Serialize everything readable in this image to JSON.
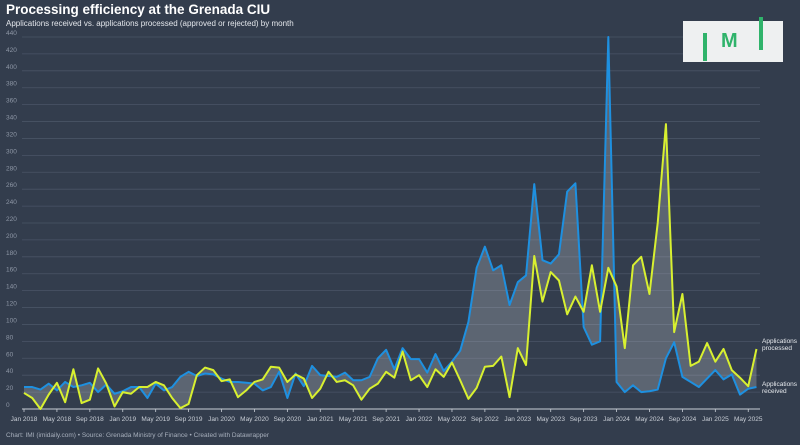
{
  "title": "Processing efficiency at the Grenada CIU",
  "subtitle": "Applications received vs. applications processed (approved or rejected) by month",
  "footer": "Chart: IMI (imidaily.com) • Source: Grenada Ministry of Finance • Created with Datawrapper",
  "logo_text": "IMI",
  "colors": {
    "background": "#333d4d",
    "received": "#1e90e0",
    "processed": "#d8f030",
    "fill": "#c8ccd4"
  },
  "chart_data": {
    "type": "line",
    "title": "Processing efficiency at the Grenada CIU",
    "xlabel": "",
    "ylabel": "",
    "ylim": [
      0,
      440
    ],
    "yticks": [
      0,
      20,
      40,
      60,
      80,
      100,
      120,
      140,
      160,
      180,
      200,
      220,
      240,
      260,
      280,
      300,
      320,
      340,
      360,
      380,
      400,
      420,
      440
    ],
    "grid": true,
    "x_start": "Jan 2018",
    "x_end": "Jun 2025",
    "xtick_labels": [
      "Jan 2018",
      "May 2018",
      "Sep 2018",
      "Jan 2019",
      "May 2019",
      "Sep 2019",
      "Jan 2020",
      "May 2020",
      "Sep 2020",
      "Jan 2021",
      "May 2021",
      "Sep 2021",
      "Jan 2022",
      "May 2022",
      "Sep 2022",
      "Jan 2023",
      "May 2023",
      "Sep 2023",
      "Jan 2024",
      "May 2024",
      "Sep 2024",
      "Jan 2025",
      "May 2025"
    ],
    "series": [
      {
        "name": "Applications received",
        "label_lines": [
          "Applications",
          "received"
        ],
        "values": [
          26,
          26,
          23,
          30,
          22,
          32,
          26,
          28,
          31,
          20,
          29,
          18,
          21,
          26,
          26,
          13,
          30,
          22,
          26,
          38,
          44,
          39,
          42,
          41,
          36,
          32,
          32,
          31,
          30,
          22,
          26,
          44,
          13,
          42,
          27,
          51,
          40,
          39,
          38,
          43,
          34,
          34,
          38,
          60,
          70,
          47,
          72,
          59,
          59,
          43,
          65,
          45,
          56,
          69,
          103,
          167,
          192,
          164,
          170,
          123,
          150,
          158,
          266,
          176,
          172,
          183,
          257,
          267,
          97,
          76,
          80,
          440,
          32,
          20,
          28,
          20,
          21,
          23,
          60,
          79,
          38,
          32,
          26,
          36,
          46,
          35,
          41,
          17,
          24,
          26
        ]
      },
      {
        "name": "Applications processed",
        "label_lines": [
          "Applications",
          "processed"
        ],
        "values": [
          19,
          13,
          0,
          17,
          31,
          8,
          47,
          7,
          11,
          48,
          30,
          3,
          20,
          18,
          26,
          26,
          32,
          28,
          13,
          1,
          6,
          40,
          49,
          46,
          33,
          35,
          14,
          22,
          32,
          35,
          50,
          49,
          32,
          41,
          36,
          13,
          24,
          44,
          32,
          34,
          28,
          11,
          24,
          30,
          44,
          37,
          68,
          34,
          40,
          26,
          47,
          38,
          55,
          34,
          12,
          25,
          50,
          51,
          62,
          14,
          72,
          52,
          181,
          127,
          162,
          152,
          112,
          133,
          115,
          170,
          115,
          167,
          145,
          72,
          170,
          180,
          136,
          220,
          337,
          91,
          136,
          51,
          56,
          78,
          56,
          71,
          46,
          37,
          27,
          71
        ]
      }
    ],
    "legend": "direct-labels-right"
  }
}
